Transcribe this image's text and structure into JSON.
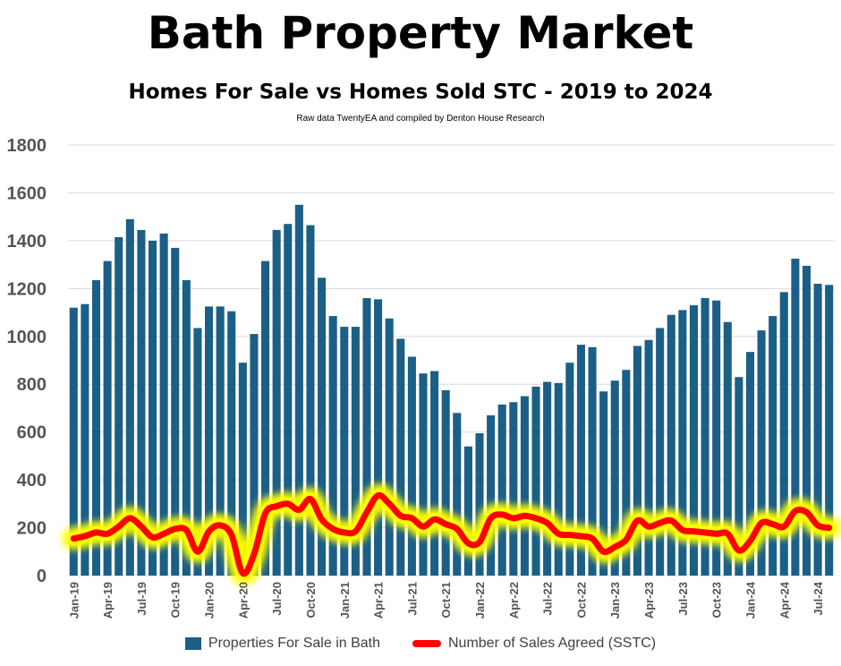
{
  "title": "Bath Property Market",
  "subtitle": "Homes For Sale vs Homes Sold STC - 2019 to 2024",
  "source": "Raw data TwentyEA and compiled by Denton House Research",
  "colors": {
    "bar": "#1b5f86",
    "line": "#ff0000",
    "glow": "#ffff00",
    "grid": "#d9d9d9",
    "axis_text": "#555555"
  },
  "chart_data": {
    "type": "bar",
    "title": "Bath Property Market",
    "subtitle": "Homes For Sale vs Homes Sold STC - 2019 to 2024",
    "ylim": [
      0,
      1800
    ],
    "yticks": [
      0,
      200,
      400,
      600,
      800,
      1000,
      1200,
      1400,
      1600,
      1800
    ],
    "grid": true,
    "legend_position": "bottom",
    "categories": [
      "Jan-19",
      "Feb-19",
      "Mar-19",
      "Apr-19",
      "May-19",
      "Jun-19",
      "Jul-19",
      "Aug-19",
      "Sep-19",
      "Oct-19",
      "Nov-19",
      "Dec-19",
      "Jan-20",
      "Feb-20",
      "Mar-20",
      "Apr-20",
      "May-20",
      "Jun-20",
      "Jul-20",
      "Aug-20",
      "Sep-20",
      "Oct-20",
      "Nov-20",
      "Dec-20",
      "Jan-21",
      "Feb-21",
      "Mar-21",
      "Apr-21",
      "May-21",
      "Jun-21",
      "Jul-21",
      "Aug-21",
      "Sep-21",
      "Oct-21",
      "Nov-21",
      "Dec-21",
      "Jan-22",
      "Feb-22",
      "Mar-22",
      "Apr-22",
      "May-22",
      "Jun-22",
      "Jul-22",
      "Aug-22",
      "Sep-22",
      "Oct-22",
      "Nov-22",
      "Dec-22",
      "Jan-23",
      "Feb-23",
      "Mar-23",
      "Apr-23",
      "May-23",
      "Jun-23",
      "Jul-23",
      "Aug-23",
      "Sep-23",
      "Oct-23",
      "Nov-23",
      "Dec-23",
      "Jan-24",
      "Feb-24",
      "Mar-24",
      "Apr-24",
      "May-24",
      "Jun-24",
      "Jul-24",
      "Aug-24"
    ],
    "x_tick_labels": [
      "Jan-19",
      "Apr-19",
      "Jul-19",
      "Oct-19",
      "Jan-20",
      "Apr-20",
      "Jul-20",
      "Oct-20",
      "Jan-21",
      "Apr-21",
      "Jul-21",
      "Oct-21",
      "Jan-22",
      "Apr-22",
      "Jul-22",
      "Oct-22",
      "Jan-23",
      "Apr-23",
      "Jul-23",
      "Oct-23",
      "Jan-24",
      "Apr-24",
      "Jul-24"
    ],
    "series": [
      {
        "name": "Properties For Sale in Bath",
        "type": "bar",
        "values": [
          1120,
          1135,
          1235,
          1315,
          1415,
          1490,
          1445,
          1400,
          1430,
          1370,
          1235,
          1035,
          1125,
          1125,
          1105,
          890,
          1010,
          1315,
          1445,
          1470,
          1550,
          1465,
          1245,
          1085,
          1040,
          1040,
          1160,
          1155,
          1075,
          990,
          915,
          845,
          855,
          775,
          680,
          540,
          595,
          670,
          715,
          725,
          750,
          790,
          810,
          805,
          890,
          965,
          955,
          770,
          815,
          860,
          960,
          985,
          1035,
          1090,
          1110,
          1130,
          1160,
          1150,
          1060,
          830,
          935,
          1025,
          1085,
          1185,
          1325,
          1295,
          1220,
          1215
        ]
      },
      {
        "name": "Number of Sales Agreed (SSTC)",
        "type": "line",
        "values": [
          155,
          165,
          180,
          175,
          205,
          240,
          205,
          160,
          175,
          195,
          190,
          100,
          185,
          210,
          170,
          10,
          90,
          260,
          290,
          300,
          275,
          320,
          235,
          195,
          180,
          185,
          265,
          335,
          300,
          250,
          240,
          205,
          235,
          215,
          195,
          135,
          140,
          240,
          255,
          240,
          250,
          240,
          220,
          175,
          170,
          165,
          155,
          100,
          120,
          150,
          230,
          205,
          220,
          230,
          190,
          185,
          180,
          175,
          175,
          105,
          145,
          220,
          215,
          205,
          270,
          265,
          210,
          200
        ]
      }
    ]
  }
}
